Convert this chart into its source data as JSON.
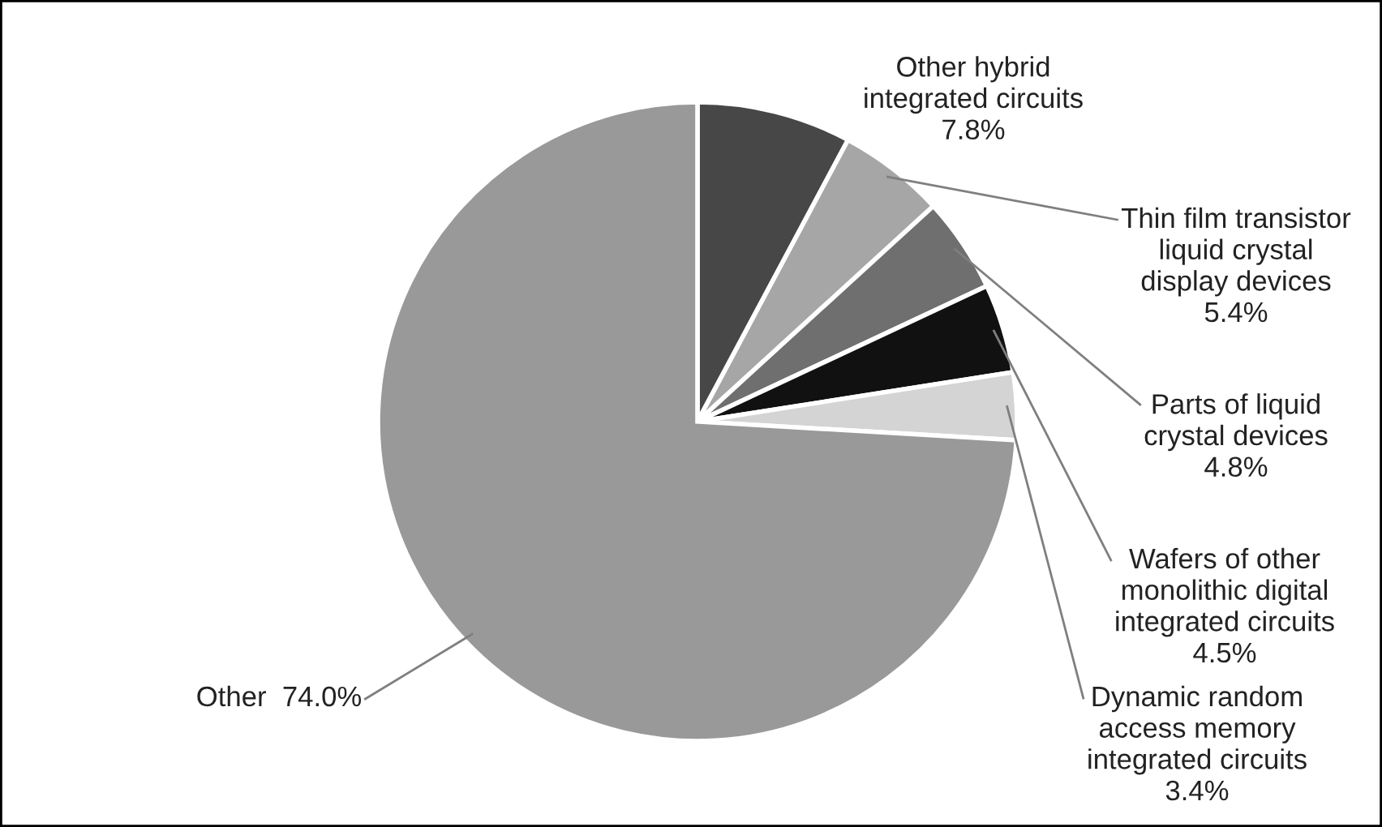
{
  "chart_data": {
    "type": "pie",
    "categories": [
      "Other hybrid\nintegrated circuits",
      "Thin film transistor\nliquid crystal\ndisplay devices",
      "Parts of liquid\ncrystal devices",
      "Wafers of other\nmonolithic digital\nintegrated circuits",
      "Dynamic random\naccess memory\nintegrated circuits",
      "Other"
    ],
    "values": [
      7.8,
      5.4,
      4.8,
      4.5,
      3.4,
      74.0
    ],
    "value_labels": [
      "7.8%",
      "5.4%",
      "4.8%",
      "4.5%",
      "3.4%",
      "74.0%"
    ],
    "colors": [
      "#474747",
      "#a6a6a6",
      "#6f6f6f",
      "#111111",
      "#d4d4d4",
      "#999999"
    ]
  }
}
